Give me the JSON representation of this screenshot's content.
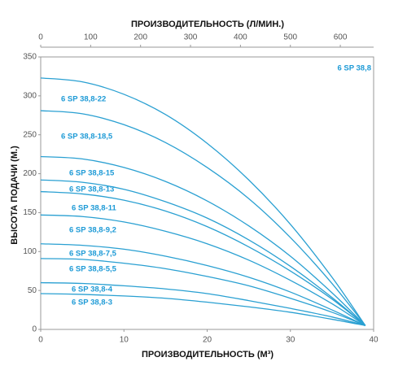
{
  "chart_data": {
    "type": "line",
    "title": "ПРОИЗВОДИТЕЛЬНОСТЬ (Л/МИН.)",
    "x_label": "ПРОИЗВОДИТЕЛЬНОСТЬ (М³)",
    "y_label": "ВЫСОТА ПОДАЧИ (М.)",
    "annotation": "6 SP 38,8",
    "color": "#2aa0d2",
    "x": [
      0,
      5,
      10,
      15,
      20,
      25,
      30,
      35,
      39
    ],
    "xlim": [
      0,
      40
    ],
    "xticks": [
      0,
      10,
      20,
      30,
      40
    ],
    "x2lim": [
      0,
      666.7
    ],
    "x2ticks": [
      0,
      100,
      200,
      300,
      400,
      500,
      600
    ],
    "ylim": [
      0,
      350
    ],
    "yticks": [
      0,
      50,
      100,
      150,
      200,
      250,
      300,
      350
    ],
    "series": [
      {
        "name": "6 SP 38,8-22",
        "values": [
          323,
          318,
          302,
          276,
          239,
          192,
          135,
          67,
          5
        ]
      },
      {
        "name": "6 SP 38,8-18,5",
        "values": [
          281,
          277,
          263,
          240,
          208,
          168,
          118,
          59,
          5
        ]
      },
      {
        "name": "6 SP 38,8-15",
        "values": [
          222,
          219,
          208,
          190,
          165,
          133,
          94,
          47,
          5
        ]
      },
      {
        "name": "6 SP 38,8-13",
        "values": [
          192,
          189,
          180,
          164,
          143,
          115,
          81,
          41,
          5
        ]
      },
      {
        "name": "6 SP 38,8-11",
        "values": [
          177,
          174,
          166,
          152,
          132,
          106,
          75,
          39,
          5
        ]
      },
      {
        "name": "6 SP 38,8-9,2",
        "values": [
          147,
          145,
          138,
          126,
          110,
          89,
          63,
          33,
          5
        ]
      },
      {
        "name": "6 SP 38,8-7,5",
        "values": [
          110,
          108,
          103,
          94,
          82,
          67,
          48,
          25,
          5
        ]
      },
      {
        "name": "6 SP 38,8-5,5",
        "values": [
          91,
          90,
          85,
          78,
          68,
          56,
          40,
          22,
          5
        ]
      },
      {
        "name": "6 SP 38,8-4",
        "values": [
          60,
          59,
          56,
          52,
          46,
          37,
          27,
          16,
          5
        ]
      },
      {
        "name": "6 SP 38,8-3",
        "values": [
          46,
          45,
          43,
          40,
          35,
          29,
          22,
          13,
          5
        ]
      }
    ]
  }
}
